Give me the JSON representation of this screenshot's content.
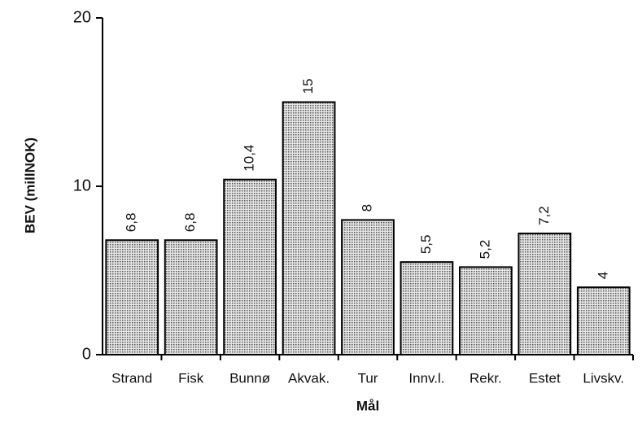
{
  "chart_data": {
    "type": "bar",
    "categories": [
      "Strand",
      "Fisk",
      "Bunnø",
      "Akvak.",
      "Tur",
      "Innv.l.",
      "Rekr.",
      "Estet",
      "Livskv."
    ],
    "values": [
      6.8,
      6.8,
      10.4,
      15,
      8,
      5.5,
      5.2,
      7.2,
      4
    ],
    "value_labels": [
      "6,8",
      "6,8",
      "10,4",
      "15",
      "8",
      "5,5",
      "5,2",
      "7,2",
      "4"
    ],
    "color": "#b8b8b8",
    "ylim": [
      0,
      20
    ],
    "yticks": [
      0,
      10,
      20
    ],
    "y_label": "BEV  (millNOK)",
    "x_label": "Mål",
    "grid": false
  }
}
